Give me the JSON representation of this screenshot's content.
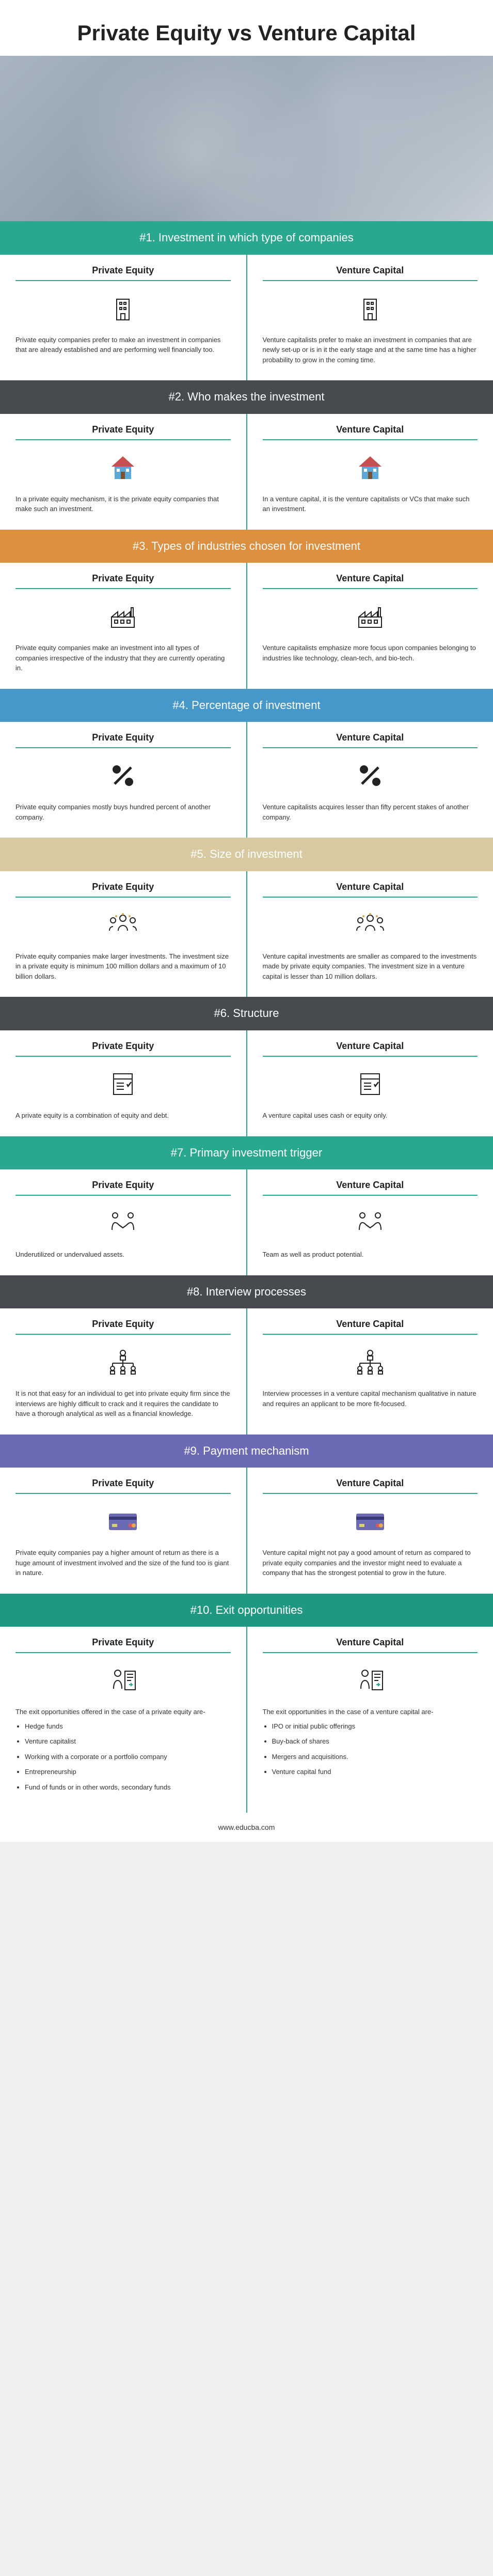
{
  "title": "Private Equity vs Venture Capital",
  "footer": "www.educba.com",
  "colors": {
    "teal": "#2aa88f",
    "darkgray": "#474a4e",
    "orange": "#dc8f3f",
    "blue": "#4698cb",
    "cream": "#d9c9a0",
    "purple": "#6b6bb5",
    "tealdark": "#1f9882"
  },
  "col_left_label": "Private Equity",
  "col_right_label": "Venture Capital",
  "sections": [
    {
      "header": "#1. Investment in which type of companies",
      "bg": "#2aa88f",
      "icon": "building",
      "left": "Private equity companies prefer to make an investment in companies that are already established and are performing well financially too.",
      "right": "Venture capitalists prefer to make an investment in companies that are newly set-up or is in it the early stage and at the same time has a higher probability to grow in the coming time."
    },
    {
      "header": "#2. Who makes the investment",
      "bg": "#474a4e",
      "icon": "house",
      "left": "In a private equity mechanism, it is the private equity companies that make such an investment.",
      "right": "In a venture capital, it is the venture capitalists or VCs that make such an investment."
    },
    {
      "header": "#3. Types of industries chosen for investment",
      "bg": "#dc8f3f",
      "icon": "factory",
      "left": "Private equity companies make an investment into all types of companies irrespective of the industry that they are currently operating in.",
      "right": "Venture capitalists emphasize more focus upon companies belonging to industries like technology, clean-tech, and bio-tech."
    },
    {
      "header": "#4. Percentage of investment",
      "bg": "#4698cb",
      "icon": "percent",
      "left": "Private equity companies mostly buys hundred percent of another company.",
      "right": "Venture capitalists acquires lesser than fifty percent stakes of another company."
    },
    {
      "header": "#5. Size of investment",
      "bg": "#d9c9a0",
      "icon": "people",
      "left": "Private equity companies make larger investments. The investment size in a private equity is minimum 100 million dollars and a maximum of 10 billion dollars.",
      "right": "Venture capital investments are smaller as compared to the investments made by private equity companies. The investment size in a venture capital is lesser than 10 million dollars."
    },
    {
      "header": "#6. Structure",
      "bg": "#474a4e",
      "icon": "document",
      "left": "A private equity is a combination of equity and debt.",
      "right": "A venture capital uses cash or equity only."
    },
    {
      "header": "#7. Primary investment trigger",
      "bg": "#2aa88f",
      "icon": "handshake",
      "left": "Underutilized or undervalued assets.",
      "right": "Team as well as product potential."
    },
    {
      "header": "#8. Interview processes",
      "bg": "#474a4e",
      "icon": "hierarchy",
      "left": "It is not that easy for an individual to get into private equity firm since the interviews are highly difficult to crack and it requires the candidate to have a thorough analytical as well as a financial knowledge.",
      "right": "Interview processes in a venture capital mechanism qualitative in nature and requires an applicant to be more fit-focused."
    },
    {
      "header": "#9. Payment mechanism",
      "bg": "#6b6bb5",
      "icon": "card",
      "left": "Private equity companies pay a higher amount of return as there is a huge amount of investment involved and the size of the fund too is giant in nature.",
      "right": "Venture capital might not pay a good amount of return as compared to private equity companies and the investor might need to evaluate a company that has the strongest potential to grow in the future."
    },
    {
      "header": "#10. Exit opportunities",
      "bg": "#1f9882",
      "icon": "exit",
      "left_intro": "The exit opportunities offered in the case of a private equity are-",
      "left_list": [
        "Hedge funds",
        "Venture capitalist",
        "Working with a corporate or a portfolio company",
        "Entrepreneurship",
        "Fund of funds or in other words, secondary funds"
      ],
      "right_intro": "The exit opportunities in the case of a venture capital are-",
      "right_list": [
        "IPO or initial public offerings",
        "Buy-back of shares",
        "Mergers and acquisitions.",
        "Venture capital fund"
      ]
    }
  ]
}
